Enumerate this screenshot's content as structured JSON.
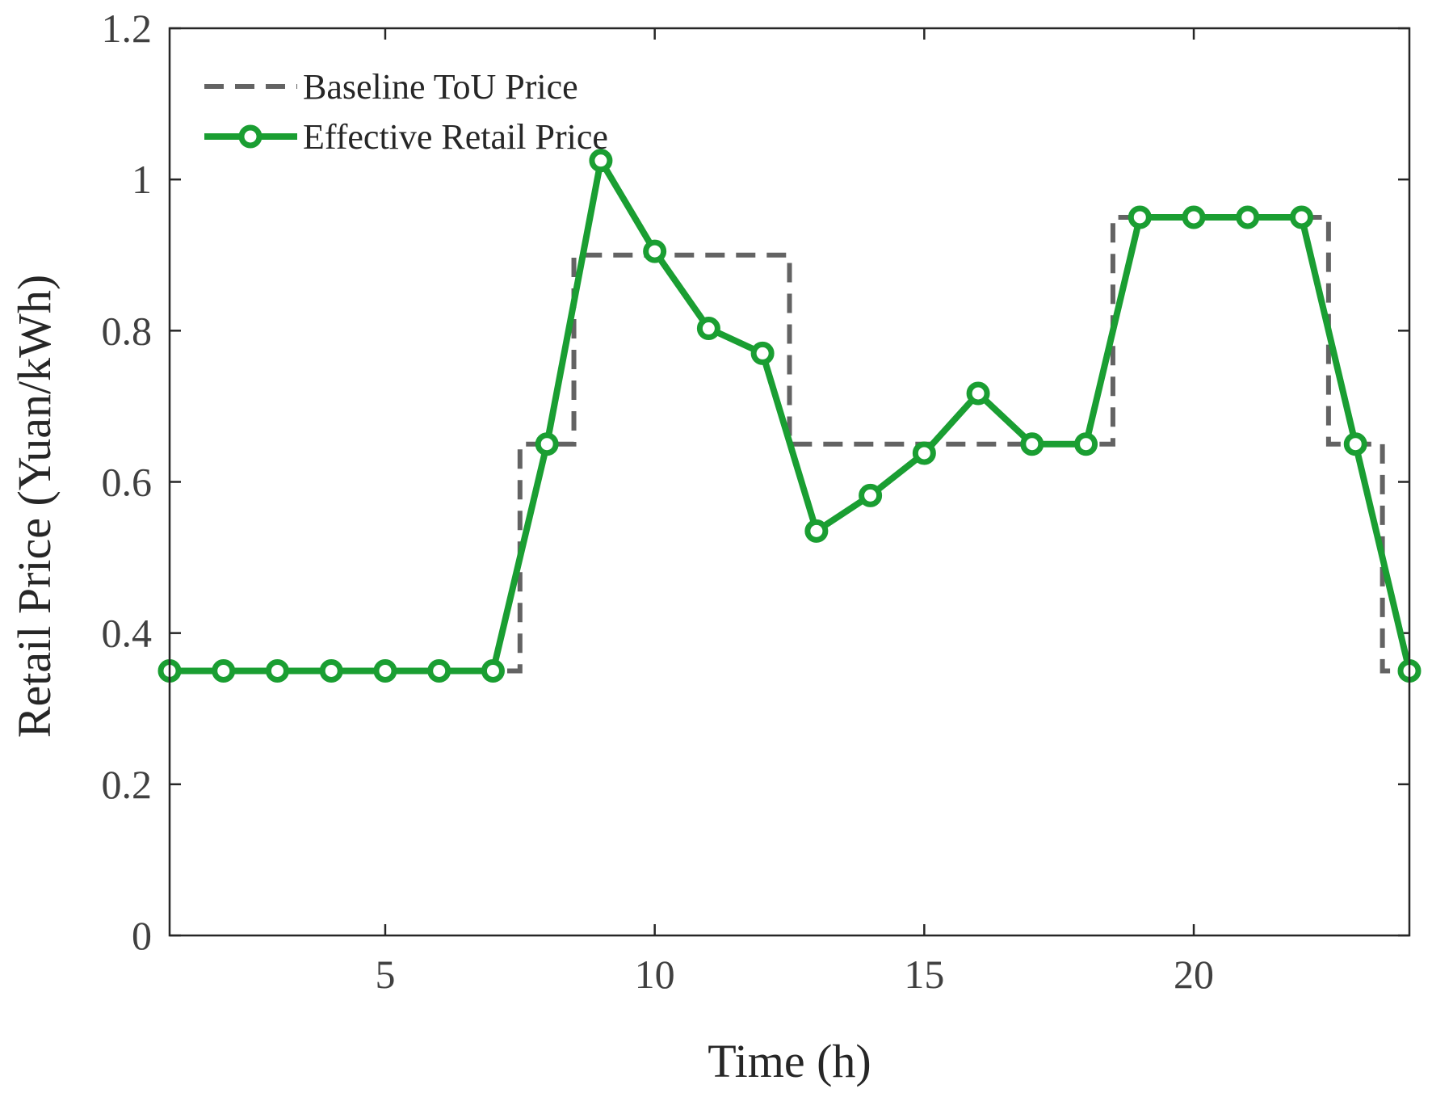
{
  "chart_data": {
    "type": "line",
    "xlabel": "Time (h)",
    "ylabel": "Retail Price (Yuan/kWh)",
    "xlim": [
      1,
      24
    ],
    "ylim": [
      0,
      1.2
    ],
    "xticks": [
      5,
      10,
      15,
      20
    ],
    "yticks": [
      0,
      0.2,
      0.4,
      0.6,
      0.8,
      1,
      1.2
    ],
    "xtick_labels": [
      "5",
      "10",
      "15",
      "20"
    ],
    "ytick_labels": [
      "0",
      "0.2",
      "0.4",
      "0.6",
      "0.8",
      "1",
      "1.2"
    ],
    "grid": false,
    "legend_position": "top-left",
    "x": [
      1,
      2,
      3,
      4,
      5,
      6,
      7,
      8,
      9,
      10,
      11,
      12,
      13,
      14,
      15,
      16,
      17,
      18,
      19,
      20,
      21,
      22,
      23,
      24
    ],
    "series": [
      {
        "name": "Baseline ToU Price",
        "style": "dashed-stairs",
        "color": "#636363",
        "values": [
          0.35,
          0.35,
          0.35,
          0.35,
          0.35,
          0.35,
          0.35,
          0.65,
          0.9,
          0.9,
          0.9,
          0.9,
          0.65,
          0.65,
          0.65,
          0.65,
          0.65,
          0.65,
          0.95,
          0.95,
          0.95,
          0.95,
          0.65,
          0.35
        ]
      },
      {
        "name": "Effective Retail Price",
        "style": "solid-markers",
        "color": "#1a9e32",
        "values": [
          0.35,
          0.35,
          0.35,
          0.35,
          0.35,
          0.35,
          0.35,
          0.65,
          1.025,
          0.905,
          0.803,
          0.77,
          0.535,
          0.582,
          0.638,
          0.717,
          0.65,
          0.65,
          0.95,
          0.95,
          0.95,
          0.95,
          0.65,
          0.35
        ]
      }
    ]
  }
}
